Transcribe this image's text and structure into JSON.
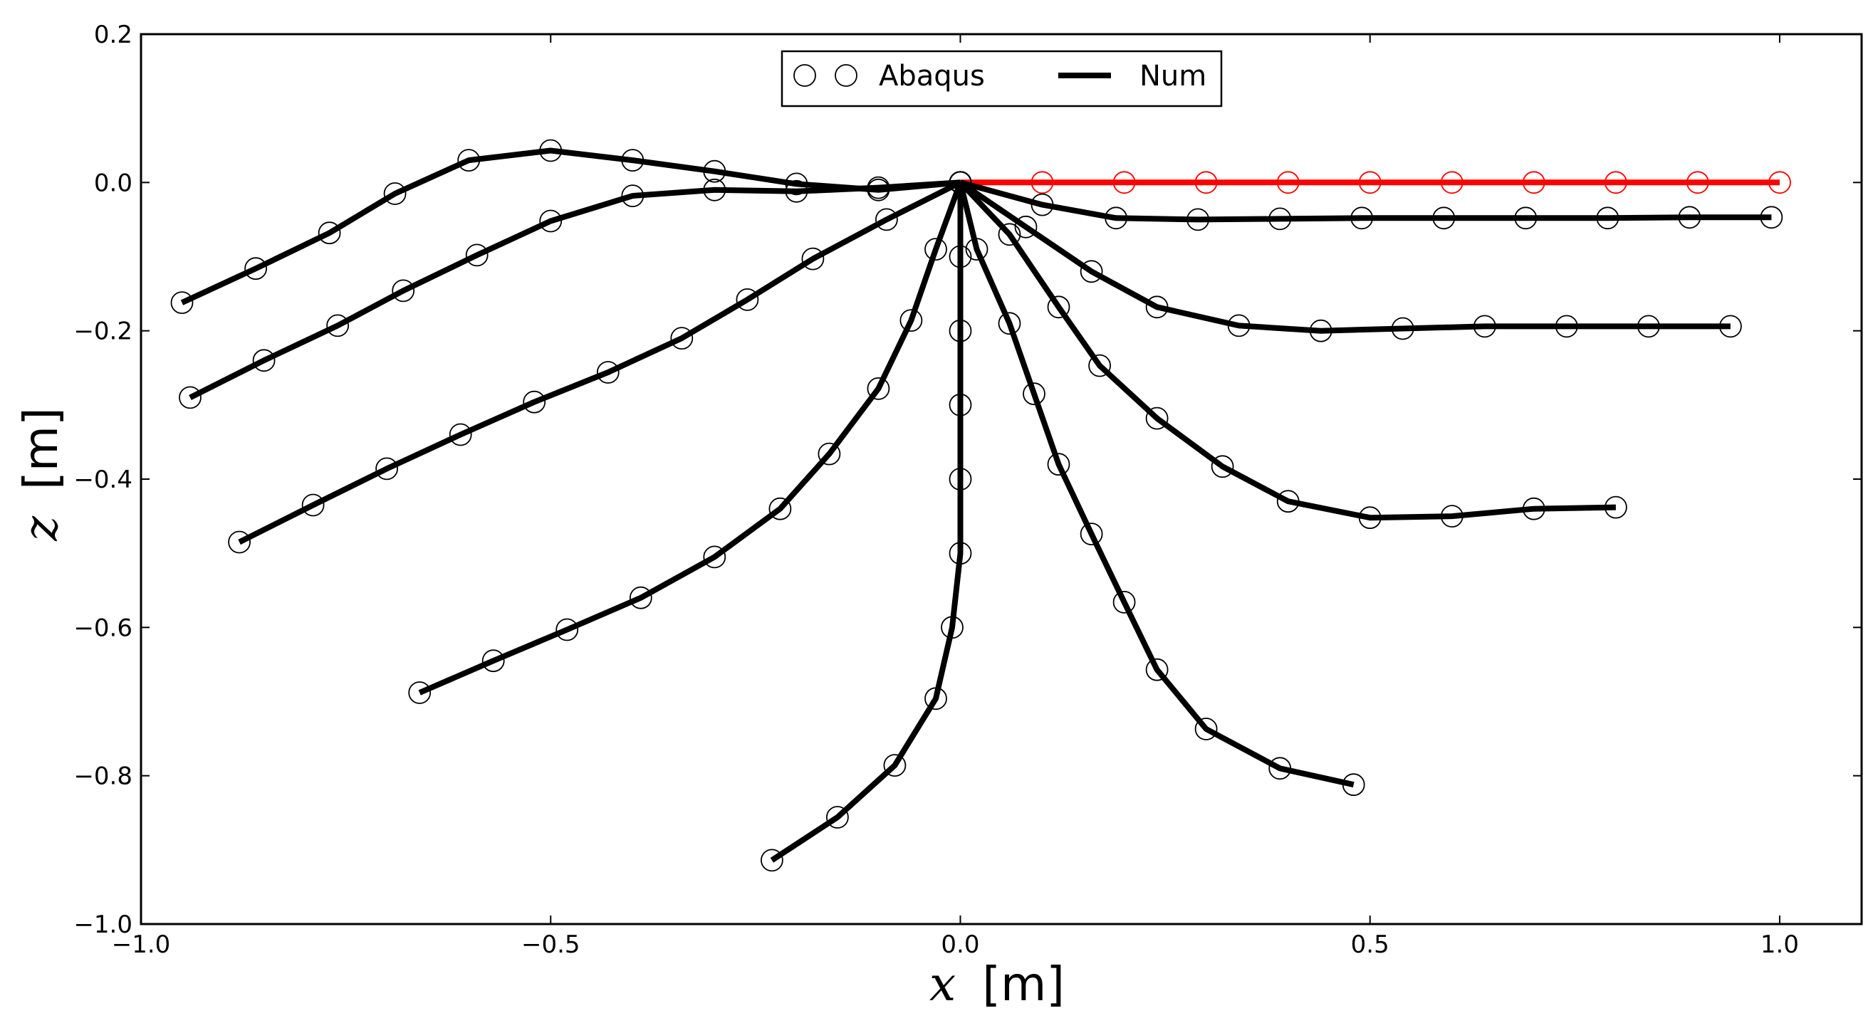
{
  "chart_data": {
    "type": "line",
    "title": "",
    "xlabel": {
      "var": "x",
      "unit": "[m]"
    },
    "ylabel": {
      "var": "z",
      "unit": "[m]"
    },
    "xlim": [
      -1.0,
      1.1
    ],
    "ylim": [
      -1.0,
      0.2
    ],
    "xticks": [
      -1.0,
      -0.5,
      0.0,
      0.5,
      1.0
    ],
    "xtick_labels": [
      "−1.0",
      "−0.5",
      "0.0",
      "0.5",
      "1.0"
    ],
    "yticks": [
      -1.0,
      -0.8,
      -0.6,
      -0.4,
      -0.2,
      0.0,
      0.2
    ],
    "ytick_labels": [
      "−1.0",
      "−0.8",
      "−0.6",
      "−0.4",
      "−0.2",
      "0.0",
      "0.2"
    ],
    "grid": false,
    "legend": {
      "placement": "top-center",
      "entries": [
        {
          "label": "Abaqus",
          "marker": "open-circle",
          "color": "#000000"
        },
        {
          "label": "Num",
          "marker": "line",
          "color": "#000000"
        }
      ]
    },
    "series": [
      {
        "color": "#ff0000",
        "points": [
          [
            0,
            0
          ],
          [
            0.1,
            0
          ],
          [
            0.2,
            0
          ],
          [
            0.3,
            0
          ],
          [
            0.4,
            0
          ],
          [
            0.5,
            0
          ],
          [
            0.6,
            0
          ],
          [
            0.7,
            0
          ],
          [
            0.8,
            0
          ],
          [
            0.9,
            0
          ],
          [
            1.0,
            0
          ]
        ]
      },
      {
        "color": "#000000",
        "points": [
          [
            0,
            0
          ],
          [
            0.1,
            -0.03
          ],
          [
            0.19,
            -0.048
          ],
          [
            0.29,
            -0.05
          ],
          [
            0.39,
            -0.049
          ],
          [
            0.49,
            -0.048
          ],
          [
            0.59,
            -0.048
          ],
          [
            0.69,
            -0.048
          ],
          [
            0.79,
            -0.048
          ],
          [
            0.89,
            -0.047
          ],
          [
            0.99,
            -0.047
          ]
        ]
      },
      {
        "color": "#000000",
        "points": [
          [
            0,
            0
          ],
          [
            0.08,
            -0.06
          ],
          [
            0.16,
            -0.12
          ],
          [
            0.24,
            -0.168
          ],
          [
            0.34,
            -0.193
          ],
          [
            0.44,
            -0.2
          ],
          [
            0.54,
            -0.197
          ],
          [
            0.64,
            -0.194
          ],
          [
            0.74,
            -0.194
          ],
          [
            0.84,
            -0.194
          ],
          [
            0.94,
            -0.194
          ]
        ]
      },
      {
        "color": "#000000",
        "points": [
          [
            0,
            0
          ],
          [
            0.06,
            -0.07
          ],
          [
            0.12,
            -0.168
          ],
          [
            0.17,
            -0.247
          ],
          [
            0.24,
            -0.318
          ],
          [
            0.32,
            -0.383
          ],
          [
            0.4,
            -0.43
          ],
          [
            0.5,
            -0.452
          ],
          [
            0.6,
            -0.45
          ],
          [
            0.7,
            -0.44
          ],
          [
            0.8,
            -0.438
          ]
        ]
      },
      {
        "color": "#000000",
        "points": [
          [
            0,
            0
          ],
          [
            0.02,
            -0.09
          ],
          [
            0.06,
            -0.19
          ],
          [
            0.09,
            -0.285
          ],
          [
            0.12,
            -0.38
          ],
          [
            0.16,
            -0.474
          ],
          [
            0.2,
            -0.566
          ],
          [
            0.24,
            -0.657
          ],
          [
            0.3,
            -0.737
          ],
          [
            0.39,
            -0.79
          ],
          [
            0.48,
            -0.812
          ]
        ]
      },
      {
        "color": "#000000",
        "points": [
          [
            0,
            0
          ],
          [
            0,
            -0.1
          ],
          [
            0,
            -0.2
          ],
          [
            0,
            -0.3
          ],
          [
            0,
            -0.4
          ],
          [
            0,
            -0.5
          ],
          [
            -0.01,
            -0.6
          ],
          [
            -0.03,
            -0.696
          ],
          [
            -0.08,
            -0.786
          ],
          [
            -0.15,
            -0.856
          ],
          [
            -0.23,
            -0.914
          ]
        ]
      },
      {
        "color": "#000000",
        "points": [
          [
            0,
            0
          ],
          [
            -0.03,
            -0.09
          ],
          [
            -0.06,
            -0.186
          ],
          [
            -0.1,
            -0.278
          ],
          [
            -0.16,
            -0.366
          ],
          [
            -0.22,
            -0.44
          ],
          [
            -0.3,
            -0.505
          ],
          [
            -0.39,
            -0.56
          ],
          [
            -0.48,
            -0.603
          ],
          [
            -0.57,
            -0.645
          ],
          [
            -0.66,
            -0.688
          ]
        ]
      },
      {
        "color": "#000000",
        "points": [
          [
            0,
            0
          ],
          [
            -0.09,
            -0.05
          ],
          [
            -0.18,
            -0.103
          ],
          [
            -0.26,
            -0.158
          ],
          [
            -0.34,
            -0.21
          ],
          [
            -0.43,
            -0.256
          ],
          [
            -0.52,
            -0.296
          ],
          [
            -0.61,
            -0.34
          ],
          [
            -0.7,
            -0.386
          ],
          [
            -0.79,
            -0.435
          ],
          [
            -0.88,
            -0.485
          ]
        ]
      },
      {
        "color": "#000000",
        "points": [
          [
            0,
            0
          ],
          [
            -0.1,
            -0.007
          ],
          [
            -0.2,
            -0.012
          ],
          [
            -0.3,
            -0.01
          ],
          [
            -0.4,
            -0.018
          ],
          [
            -0.5,
            -0.052
          ],
          [
            -0.59,
            -0.098
          ],
          [
            -0.68,
            -0.146
          ],
          [
            -0.76,
            -0.193
          ],
          [
            -0.85,
            -0.24
          ],
          [
            -0.94,
            -0.29
          ]
        ]
      },
      {
        "color": "#000000",
        "points": [
          [
            0,
            0
          ],
          [
            -0.1,
            -0.01
          ],
          [
            -0.2,
            -0.002
          ],
          [
            -0.3,
            0.015
          ],
          [
            -0.4,
            0.03
          ],
          [
            -0.5,
            0.043
          ],
          [
            -0.6,
            0.03
          ],
          [
            -0.69,
            -0.015
          ],
          [
            -0.77,
            -0.068
          ],
          [
            -0.86,
            -0.116
          ],
          [
            -0.95,
            -0.162
          ]
        ]
      }
    ]
  }
}
